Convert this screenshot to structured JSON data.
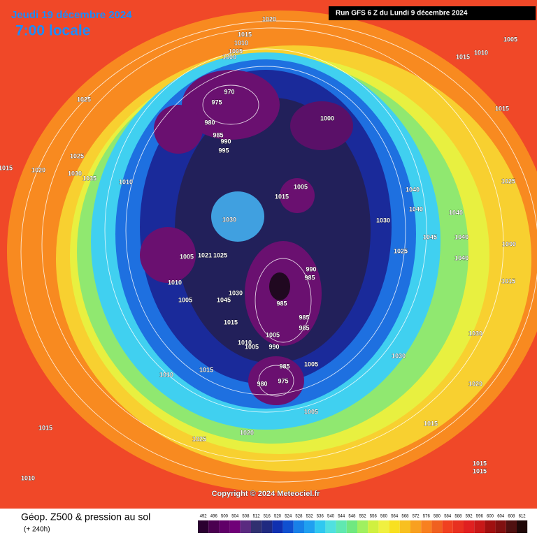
{
  "header": {
    "date": "Jeudi 19 décembre 2024",
    "time": "7:00 locale",
    "run": "Run GFS 6 Z du Lundi 9 décembre 2024"
  },
  "copyright": "Copyright © 2024 Meteociel.fr",
  "footer": {
    "title": "Géop. Z500 & pression au sol",
    "lead": "(+ 240h)"
  },
  "isobar_labels": [
    "1020",
    "1015",
    "1010",
    "1005",
    "1000",
    "970",
    "975",
    "980",
    "985",
    "990",
    "995",
    "1000",
    "1025",
    "1025",
    "1020",
    "1030",
    "1035",
    "1010",
    "1015",
    "1005",
    "1015",
    "1030",
    "1005",
    "1021",
    "1025",
    "1010",
    "1005",
    "1030",
    "1045",
    "1015",
    "990",
    "985",
    "985",
    "985",
    "985",
    "1005",
    "1010",
    "1005",
    "990",
    "985",
    "975",
    "980",
    "1005",
    "1020",
    "1025",
    "1015",
    "1010",
    "1010",
    "1015",
    "1030",
    "1040",
    "1040",
    "1045",
    "1040",
    "1030",
    "1025",
    "1025",
    "1000",
    "1015",
    "1005",
    "1010",
    "1015",
    "1015",
    "1030",
    "1020",
    "1015",
    "1015",
    "1015",
    "1005",
    "1040",
    "1040"
  ],
  "legend": {
    "values": [
      492,
      496,
      500,
      504,
      508,
      512,
      516,
      520,
      524,
      528,
      532,
      536,
      540,
      544,
      548,
      552,
      556,
      560,
      564,
      568,
      572,
      576,
      580,
      584,
      588,
      592,
      596,
      600,
      604,
      608,
      612
    ],
    "colors": [
      "#2a0030",
      "#4a0050",
      "#600068",
      "#700078",
      "#5a2a80",
      "#303070",
      "#202a80",
      "#1030b0",
      "#1050d0",
      "#1880e8",
      "#20a0f0",
      "#30c8f0",
      "#50e0e0",
      "#60e8b0",
      "#70e880",
      "#a0f060",
      "#d0f040",
      "#f0f040",
      "#f8e020",
      "#f8c020",
      "#f8a020",
      "#f88020",
      "#f06020",
      "#f04020",
      "#e83020",
      "#e02020",
      "#c81818",
      "#a01010",
      "#801010",
      "#501010",
      "#200808"
    ]
  }
}
